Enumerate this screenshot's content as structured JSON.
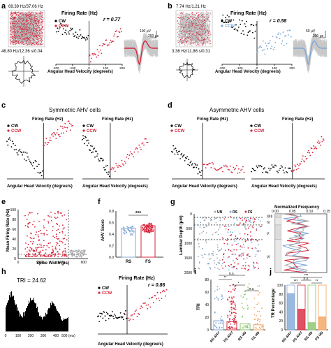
{
  "panels": {
    "a": {
      "letter": "a",
      "rate_top": "69.39 Hz/37.06 Hz",
      "rate_bot": "46.80 Hz/12.36 s/0.04",
      "ylabel": "Firing Rate (Hz)",
      "xlabel": "Angular Head Velocity (degree/s)",
      "r": "r = 0.77",
      "scale_v": "100 μV",
      "scale_t": "200 μs",
      "legend": [
        "CW",
        "CCW"
      ],
      "ticks": [
        "-200",
        "-100",
        "0",
        "100",
        "200"
      ]
    },
    "b": {
      "letter": "b",
      "rate_top": "7.74 Hz/1.21 Hz",
      "rate_bot": "3.36 Hz/11.86 s/0.31",
      "ylabel": "Firing Rate (Hz)",
      "xlabel": "Angular Head Velocity (degree/s)",
      "r": "r = 0.58",
      "scale_v": "50 μV",
      "scale_t": "200 μs",
      "legend": [
        "CW",
        "CCW"
      ],
      "ticks": [
        "-200",
        "-100",
        "0",
        "100",
        "200"
      ]
    },
    "c": {
      "letter": "c",
      "title": "Symmetric AHV cells",
      "ylabel": "Firing Rate (Hz)",
      "xlabel": "Angular Head Velocity (degree/s)",
      "legend": [
        "CW",
        "CCW"
      ]
    },
    "d": {
      "letter": "d",
      "title": "Asymmetric AHV cells",
      "ylabel": "Firing Rate (Hz)",
      "xlabel": "Angular Head Velocity (degree/s)",
      "legend": [
        "CW",
        "CCW"
      ]
    },
    "e": {
      "letter": "e",
      "ylabel": "Mean Firing Rate (Hz)",
      "xlabel": "Spike Width (μs)",
      "yticks": [
        "0",
        "20",
        "40",
        "60",
        "80",
        "100"
      ],
      "xticks": [
        "0",
        "200",
        "400",
        "600"
      ]
    },
    "f": {
      "letter": "f",
      "ylabel": "AHV Score",
      "xticks": [
        "RS",
        "FS"
      ],
      "yticks": [
        "0.0",
        "0.2",
        "0.4",
        "0.6",
        "0.8"
      ],
      "sig": "***"
    },
    "g": {
      "letter": "g",
      "ylabel": "Laminar Depth (μm)",
      "yticks": [
        "0",
        "500",
        "1000",
        "1500",
        "2000"
      ],
      "legend": [
        "UN",
        "RS",
        "FS"
      ],
      "layers": [
        "II/III",
        "IV",
        "V",
        "VI"
      ],
      "freq_title": "Normalized Frequency",
      "freq_ticks": [
        "0.00",
        "0.05",
        "0.10",
        "0.15"
      ]
    },
    "h": {
      "letter": "h",
      "tri": "TRI = 24.62",
      "xticks": [
        "0",
        "100",
        "200",
        "300",
        "400",
        "500 (ms)"
      ],
      "ylabel": "Firing Rate (Hz)",
      "xlabel": "Angular Head Velocity (degree/s)",
      "r": "r = 0.86",
      "legend": [
        "CW",
        "CCW"
      ]
    },
    "i": {
      "letter": "i",
      "ylabel": "TRI",
      "yticks": [
        "0",
        "20",
        "40",
        "60",
        "80"
      ],
      "groups": [
        "RS AHV",
        "FS AHV",
        "RS HD",
        "FS HD"
      ],
      "sig": [
        "**",
        "*",
        "n.s.",
        "n.s."
      ]
    },
    "j": {
      "letter": "j",
      "ylabel": "TR Percentage",
      "yticks": [
        "0",
        "20",
        "40",
        "60",
        "80",
        "100"
      ],
      "groups": [
        "RS AHV",
        "FS AHV",
        "RS HD",
        "FS HD"
      ],
      "values": [
        82,
        47,
        17,
        30
      ],
      "sig": [
        "***",
        "n.s.",
        "**",
        "***"
      ]
    }
  },
  "colors": {
    "cw": "#000000",
    "ccw": "#d7263d",
    "rs": "#7fa7d6",
    "fs": "#d7263d",
    "un": "#a9a9a9",
    "hd_green": "#8ac46a",
    "hd_orange": "#f2a35e"
  }
}
